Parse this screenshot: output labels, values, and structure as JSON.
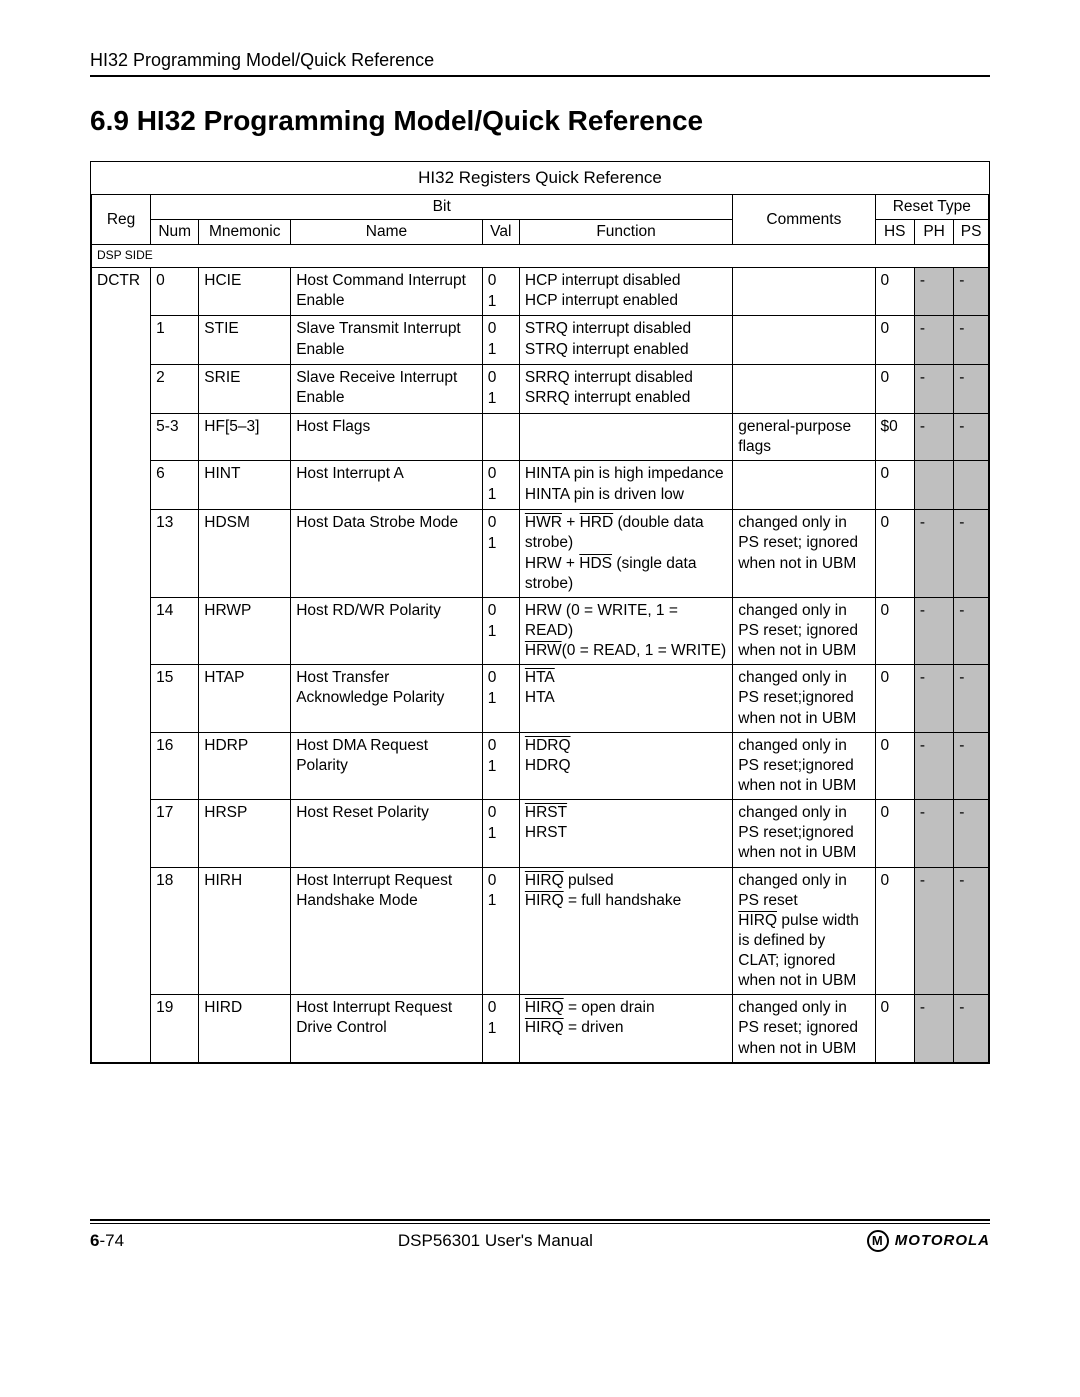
{
  "header": "HI32 Programming Model/Quick Reference",
  "section_title": "6.9 HI32 Programming Model/Quick Reference",
  "table_title": "HI32 Registers Quick Reference",
  "columns": {
    "reg": "Reg",
    "bit": "Bit",
    "num": "Num",
    "mnemonic": "Mnemonic",
    "name": "Name",
    "val": "Val",
    "function": "Function",
    "comments": "Comments",
    "reset_type": "Reset Type",
    "hs": "HS",
    "ph": "PH",
    "ps": "PS"
  },
  "section_label": "DSP SIDE",
  "reg_name": "DCTR",
  "rows": [
    {
      "num": "0",
      "mnem": "HCIE",
      "name": "Host Command Interrupt Enable",
      "val": "0\n1",
      "func": "HCP interrupt disabled\nHCP interrupt enabled",
      "comments": "",
      "hs": "0",
      "ph": "-",
      "ps": "-"
    },
    {
      "num": "1",
      "mnem": "STIE",
      "name": "Slave Transmit Interrupt Enable",
      "val": "0\n1",
      "func": "STRQ interrupt disabled\nSTRQ interrupt enabled",
      "comments": "",
      "hs": "0",
      "ph": "-",
      "ps": "-"
    },
    {
      "num": "2",
      "mnem": "SRIE",
      "name": "Slave Receive Interrupt Enable",
      "val": "0\n1",
      "func": "SRRQ interrupt disabled\nSRRQ interrupt enabled",
      "comments": "",
      "hs": "0",
      "ph": "-",
      "ps": "-"
    },
    {
      "num": "5-3",
      "mnem": "HF[5–3]",
      "name": "Host Flags",
      "val": "",
      "func": "",
      "comments": "general-purpose flags",
      "hs": "$0",
      "ph": "-",
      "ps": "-"
    },
    {
      "num": "6",
      "mnem": "HINT",
      "name": "Host Interrupt A",
      "val": "0\n1",
      "func": "HINTA pin is high impedance\nHINTA pin is driven low",
      "comments": "",
      "hs": "0",
      "ph": "",
      "ps": ""
    },
    {
      "num": "13",
      "mnem": "HDSM",
      "name": "Host Data Strobe Mode",
      "val": "0\n1",
      "func_html": "<span class='overline'>HWR</span> + <span class='overline'>HRD</span> (double data strobe)<br>HRW + <span class='overline'>HDS</span> (single data strobe)",
      "comments": "changed only in PS reset; ignored when not in UBM",
      "hs": "0",
      "ph": "-",
      "ps": "-"
    },
    {
      "num": "14",
      "mnem": "HRWP",
      "name": "Host RD/WR Polarity",
      "val": "0\n1",
      "func_html": "HRW (0 = WRITE, 1 = READ)<br><span class='overline'>HRW</span>(0 = READ, 1 = WRITE)",
      "comments": "changed only in PS reset; ignored when not in UBM",
      "hs": "0",
      "ph": "-",
      "ps": "-"
    },
    {
      "num": "15",
      "mnem": "HTAP",
      "name": "Host Transfer Acknowledge Polarity",
      "val": "0\n1",
      "func_html": "<span class='overline'>HTA</span><br>HTA",
      "comments": "changed only in PS reset;ignored when not in UBM",
      "hs": "0",
      "ph": "-",
      "ps": "-"
    },
    {
      "num": "16",
      "mnem": "HDRP",
      "name": "Host DMA Request Polarity",
      "val": "0\n1",
      "func_html": "<span class='overline'>HDRQ</span><br>HDRQ",
      "comments": "changed only in PS reset;ignored when not in UBM",
      "hs": "0",
      "ph": "-",
      "ps": "-"
    },
    {
      "num": "17",
      "mnem": "HRSP",
      "name": "Host Reset Polarity",
      "val": "0\n1",
      "func_html": "<span class='overline'>HRST</span><br>HRST",
      "comments": "changed only in PS reset;ignored when not in UBM",
      "hs": "0",
      "ph": "-",
      "ps": "-"
    },
    {
      "num": "18",
      "mnem": "HIRH",
      "name": "Host Interrupt Request Handshake Mode",
      "val": "0\n1",
      "func_html": "<span class='overline'>HIRQ</span> pulsed<br><span class='overline'>HIRQ</span> = full handshake",
      "comments_html": "changed only in PS reset<br><span class='overline'>HIRQ</span> pulse width is defined by CLAT; ignored when not in UBM",
      "hs": "0",
      "ph": "-",
      "ps": "-"
    },
    {
      "num": "19",
      "mnem": "HIRD",
      "name": "Host Interrupt Request Drive Control",
      "val": "0\n1",
      "func_html": "<span class='overline'>HIRQ</span> = open drain<br><span class='overline'>HIRQ</span> = driven",
      "comments": "changed only in PS reset; ignored when not in UBM",
      "hs": "0",
      "ph": "-",
      "ps": "-"
    }
  ],
  "footer": {
    "page": "6-74",
    "manual": "DSP56301 User's Manual",
    "brand": "MOTOROLA",
    "brand_mark": "M"
  },
  "colors": {
    "gray": "#bfbfbf",
    "text": "#000000",
    "bg": "#ffffff"
  }
}
